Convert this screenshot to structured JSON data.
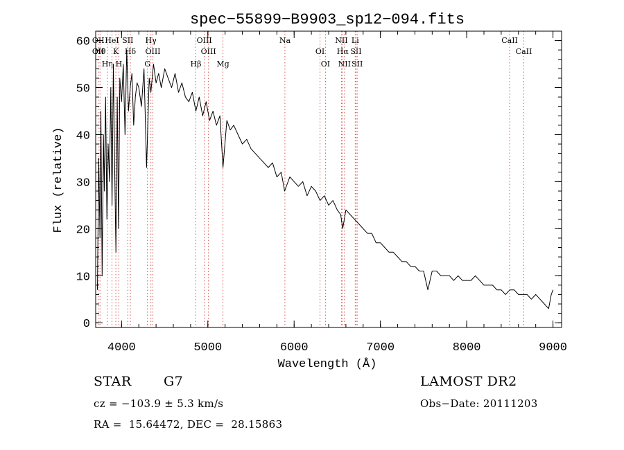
{
  "chart_data": {
    "type": "line",
    "title": "spec−55899−B9903_sp12−094.fits",
    "xlabel": "Wavelength (Å)",
    "ylabel": "Flux (relative)",
    "xlim": [
      3700,
      9100
    ],
    "ylim": [
      -1,
      62
    ],
    "x_ticks": [
      4000,
      5000,
      6000,
      7000,
      8000,
      9000
    ],
    "y_ticks": [
      0,
      10,
      20,
      30,
      40,
      50,
      60
    ],
    "grid": false,
    "line_color": "#000000",
    "marker_line_color": "#d9534f",
    "series": [
      {
        "x": [
          3720,
          3735,
          3750,
          3760,
          3775,
          3790,
          3800,
          3815,
          3830,
          3845,
          3860,
          3875,
          3890,
          3905,
          3920,
          3935,
          3950,
          3965,
          3980,
          4000,
          4020,
          4040,
          4060,
          4080,
          4100,
          4120,
          4140,
          4160,
          4180,
          4200,
          4230,
          4260,
          4290,
          4320,
          4340,
          4370,
          4400,
          4430,
          4460,
          4500,
          4540,
          4580,
          4620,
          4660,
          4700,
          4740,
          4780,
          4820,
          4861,
          4900,
          4940,
          4980,
          5020,
          5060,
          5100,
          5140,
          5175,
          5220,
          5260,
          5300,
          5350,
          5400,
          5450,
          5500,
          5550,
          5600,
          5650,
          5700,
          5750,
          5800,
          5850,
          5890,
          5950,
          6000,
          6050,
          6100,
          6150,
          6200,
          6250,
          6300,
          6350,
          6400,
          6450,
          6500,
          6540,
          6563,
          6600,
          6650,
          6700,
          6750,
          6800,
          6850,
          6900,
          6950,
          7000,
          7050,
          7100,
          7150,
          7200,
          7250,
          7300,
          7350,
          7400,
          7450,
          7500,
          7550,
          7600,
          7650,
          7700,
          7750,
          7800,
          7850,
          7900,
          7950,
          8000,
          8050,
          8100,
          8150,
          8200,
          8250,
          8300,
          8350,
          8400,
          8450,
          8500,
          8550,
          8600,
          8650,
          8700,
          8750,
          8800,
          8850,
          8900,
          8950,
          8980,
          9000
        ],
        "y": [
          7,
          35,
          18,
          45,
          10,
          40,
          28,
          48,
          22,
          38,
          30,
          50,
          25,
          55,
          33,
          15,
          48,
          20,
          52,
          47,
          55,
          40,
          58,
          45,
          50,
          53,
          42,
          48,
          51,
          50,
          46,
          54,
          33,
          52,
          49,
          55,
          51,
          53,
          50,
          54,
          52,
          50,
          53,
          49,
          51,
          48,
          47,
          49,
          45,
          48,
          44,
          47,
          43,
          45,
          42,
          44,
          33,
          43,
          41,
          42,
          40,
          38,
          39,
          37,
          36,
          35,
          34,
          33,
          34,
          31,
          32,
          28,
          31,
          30,
          29,
          30,
          27,
          29,
          28,
          26,
          27,
          25,
          26,
          24,
          23,
          20,
          24,
          23,
          22,
          21,
          20,
          19,
          19,
          17,
          17,
          16,
          15,
          15,
          14,
          13,
          13,
          12,
          12,
          11,
          11,
          7,
          11,
          11,
          10,
          10,
          10,
          9,
          10,
          9,
          9,
          9,
          10,
          9,
          8,
          8,
          8,
          7,
          7,
          6,
          7,
          7,
          6,
          6,
          6,
          5,
          6,
          5,
          4,
          3,
          6,
          7
        ]
      }
    ],
    "line_markers": [
      {
        "x": 3730,
        "labels": [
          "OII",
          "OII"
        ]
      },
      {
        "x": 3750,
        "labels": [
          "Hθ"
        ]
      },
      {
        "x": 3835,
        "labels": [
          "Hη"
        ]
      },
      {
        "x": 3889,
        "labels": [
          "HeI"
        ]
      },
      {
        "x": 3934,
        "labels": [
          "K"
        ]
      },
      {
        "x": 3969,
        "labels": [
          "H"
        ]
      },
      {
        "x": 4072,
        "labels": [
          "SII"
        ]
      },
      {
        "x": 4102,
        "labels": [
          "Hδ"
        ]
      },
      {
        "x": 4300,
        "labels": [
          "G"
        ]
      },
      {
        "x": 4340,
        "labels": [
          "Hγ"
        ]
      },
      {
        "x": 4363,
        "labels": [
          "OIII"
        ]
      },
      {
        "x": 4861,
        "labels": [
          "Hβ"
        ]
      },
      {
        "x": 4959,
        "labels": [
          "OIII"
        ]
      },
      {
        "x": 5007,
        "labels": [
          "OIII"
        ]
      },
      {
        "x": 5175,
        "labels": [
          "Mg"
        ]
      },
      {
        "x": 5893,
        "labels": [
          "Na"
        ]
      },
      {
        "x": 6300,
        "labels": [
          "OI"
        ]
      },
      {
        "x": 6363,
        "labels": [
          "OI"
        ]
      },
      {
        "x": 6548,
        "labels": [
          "NII"
        ]
      },
      {
        "x": 6563,
        "labels": [
          "Hα"
        ]
      },
      {
        "x": 6583,
        "labels": [
          "NII"
        ]
      },
      {
        "x": 6708,
        "labels": [
          "Li"
        ]
      },
      {
        "x": 6717,
        "labels": [
          "SII"
        ]
      },
      {
        "x": 6731,
        "labels": [
          "SII"
        ]
      },
      {
        "x": 8498,
        "labels": [
          "CaII"
        ]
      },
      {
        "x": 8662,
        "labels": [
          "CaII"
        ]
      }
    ]
  },
  "info": {
    "object_type": "STAR",
    "subclass": "G7",
    "survey": "LAMOST DR2",
    "velocity": "cz = −103.9 ± 5.3 km/s",
    "obs_date": "Obs−Date: 20111203",
    "coords": "RA =  15.64472, DEC =  28.15863"
  }
}
